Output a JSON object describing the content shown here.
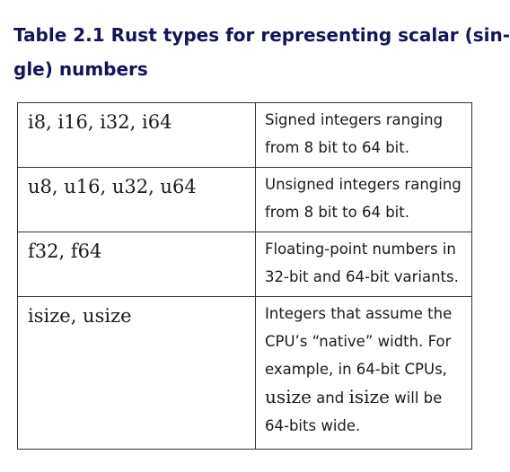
{
  "caption": {
    "line1": "Table 2.1 Rust types for representing scalar (sin-",
    "line2": "gle) numbers"
  },
  "rows": [
    {
      "types": "i8, i16, i32, i64",
      "description": [
        "Signed integers ranging",
        "from 8 bit to 64 bit."
      ]
    },
    {
      "types": "u8, u16, u32, u64",
      "description": [
        "Unsigned integers ranging",
        "from 8 bit to 64 bit."
      ]
    },
    {
      "types": "f32, f64",
      "description": [
        "Floating-point numbers in",
        "32-bit and 64-bit variants."
      ]
    },
    {
      "types": "isize, usize",
      "description_lines": {
        "l1": "Integers that assume the",
        "l2": "CPU’s “native” width. For",
        "l3": "example, in 64-bit CPUs,",
        "l4_code1": "usize",
        "l4_and": " and ",
        "l4_code2": "isize",
        "l4_end": " will be",
        "l5": "64-bits wide."
      }
    }
  ]
}
